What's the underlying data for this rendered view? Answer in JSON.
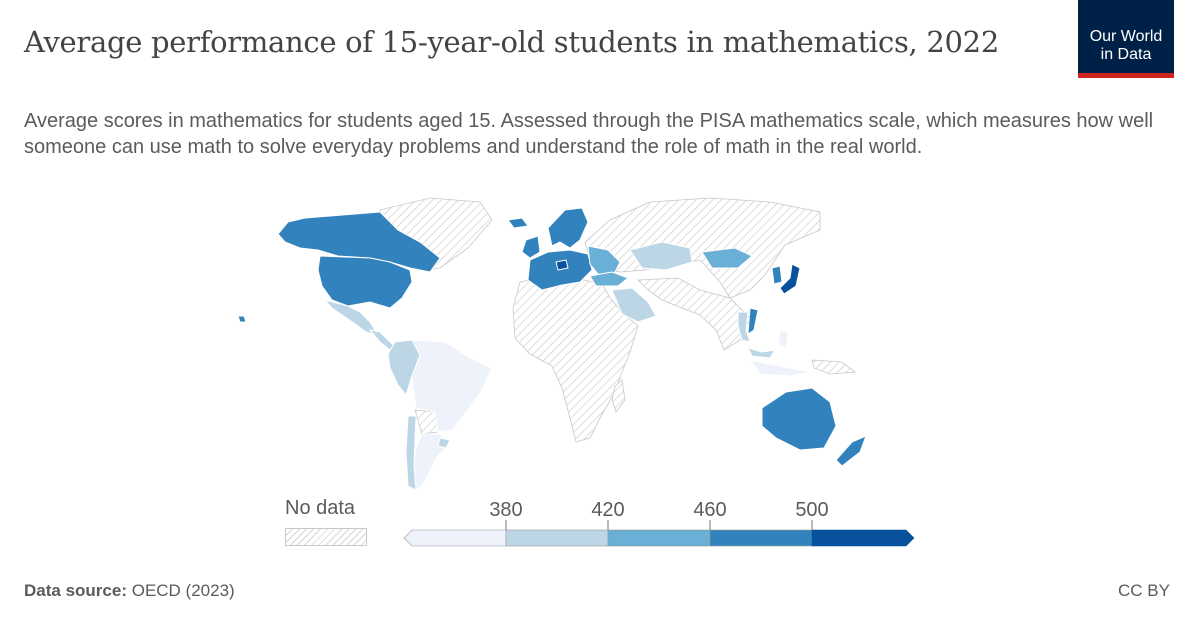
{
  "header": {
    "title": "Average performance of 15-year-old students in mathematics, 2022",
    "subtitle": "Average scores in mathematics for students aged 15. Assessed through the PISA mathematics scale, which measures how well someone can use math to solve everyday problems and understand the role of math in the real world.",
    "logo_line1": "Our World",
    "logo_line2": "in Data"
  },
  "legend": {
    "no_data_label": "No data",
    "thresholds": [
      "380",
      "420",
      "460",
      "500"
    ],
    "colors": [
      "#eef2fb",
      "#bcd6e6",
      "#6aafd6",
      "#3182bd",
      "#08519c"
    ]
  },
  "footer": {
    "source_label": "Data source:",
    "source_value": "OECD (2023)",
    "license": "CC BY"
  }
}
